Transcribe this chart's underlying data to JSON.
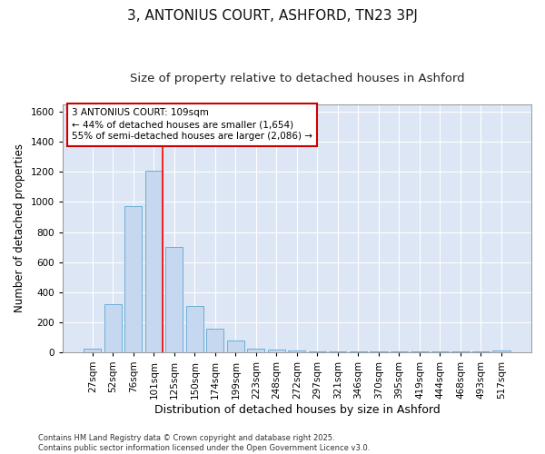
{
  "title1": "3, ANTONIUS COURT, ASHFORD, TN23 3PJ",
  "title2": "Size of property relative to detached houses in Ashford",
  "xlabel": "Distribution of detached houses by size in Ashford",
  "ylabel": "Number of detached properties",
  "categories": [
    "27sqm",
    "52sqm",
    "76sqm",
    "101sqm",
    "125sqm",
    "150sqm",
    "174sqm",
    "199sqm",
    "223sqm",
    "248sqm",
    "272sqm",
    "297sqm",
    "321sqm",
    "346sqm",
    "370sqm",
    "395sqm",
    "419sqm",
    "444sqm",
    "468sqm",
    "493sqm",
    "517sqm"
  ],
  "values": [
    20,
    320,
    975,
    1210,
    700,
    305,
    155,
    75,
    25,
    15,
    10,
    7,
    5,
    4,
    3,
    4,
    2,
    2,
    2,
    2,
    8
  ],
  "bar_color": "#c5d8f0",
  "bar_edge_color": "#6baed6",
  "bg_color": "#dce6f5",
  "grid_color": "#ffffff",
  "red_line_x": 3.42,
  "annotation_text": "3 ANTONIUS COURT: 109sqm\n← 44% of detached houses are smaller (1,654)\n55% of semi-detached houses are larger (2,086) →",
  "annotation_box_facecolor": "#ffffff",
  "annotation_box_edgecolor": "#cc0000",
  "ylim": [
    0,
    1650
  ],
  "yticks": [
    0,
    200,
    400,
    600,
    800,
    1000,
    1200,
    1400,
    1600
  ],
  "footer_text": "Contains HM Land Registry data © Crown copyright and database right 2025.\nContains public sector information licensed under the Open Government Licence v3.0.",
  "title1_fontsize": 11,
  "title2_fontsize": 9.5,
  "xlabel_fontsize": 9,
  "ylabel_fontsize": 8.5,
  "tick_fontsize": 7.5,
  "annotation_fontsize": 7.5,
  "footer_fontsize": 6
}
